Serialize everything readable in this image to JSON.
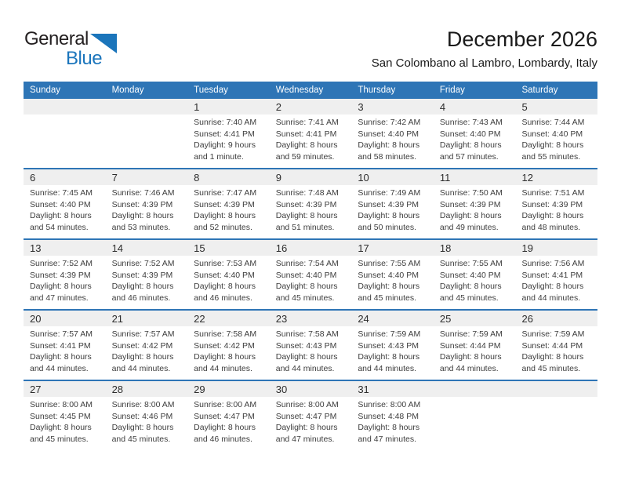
{
  "logo": {
    "text_general": "General",
    "text_blue": "Blue",
    "triangle_color": "#1b75bb"
  },
  "title": "December 2026",
  "subtitle": "San Colombano al Lambro, Lombardy, Italy",
  "weekday_headers": [
    "Sunday",
    "Monday",
    "Tuesday",
    "Wednesday",
    "Thursday",
    "Friday",
    "Saturday"
  ],
  "colors": {
    "header_bg": "#2e75b6",
    "header_text": "#ffffff",
    "week_divider": "#2e75b6",
    "day_strip_bg": "#efefef",
    "body_text": "#3d3d3d",
    "logo_blue": "#1b75bc"
  },
  "weeks": [
    [
      {
        "day": ""
      },
      {
        "day": ""
      },
      {
        "day": "1",
        "sunrise": "Sunrise: 7:40 AM",
        "sunset": "Sunset: 4:41 PM",
        "daylight1": "Daylight: 9 hours",
        "daylight2": "and 1 minute."
      },
      {
        "day": "2",
        "sunrise": "Sunrise: 7:41 AM",
        "sunset": "Sunset: 4:41 PM",
        "daylight1": "Daylight: 8 hours",
        "daylight2": "and 59 minutes."
      },
      {
        "day": "3",
        "sunrise": "Sunrise: 7:42 AM",
        "sunset": "Sunset: 4:40 PM",
        "daylight1": "Daylight: 8 hours",
        "daylight2": "and 58 minutes."
      },
      {
        "day": "4",
        "sunrise": "Sunrise: 7:43 AM",
        "sunset": "Sunset: 4:40 PM",
        "daylight1": "Daylight: 8 hours",
        "daylight2": "and 57 minutes."
      },
      {
        "day": "5",
        "sunrise": "Sunrise: 7:44 AM",
        "sunset": "Sunset: 4:40 PM",
        "daylight1": "Daylight: 8 hours",
        "daylight2": "and 55 minutes."
      }
    ],
    [
      {
        "day": "6",
        "sunrise": "Sunrise: 7:45 AM",
        "sunset": "Sunset: 4:40 PM",
        "daylight1": "Daylight: 8 hours",
        "daylight2": "and 54 minutes."
      },
      {
        "day": "7",
        "sunrise": "Sunrise: 7:46 AM",
        "sunset": "Sunset: 4:39 PM",
        "daylight1": "Daylight: 8 hours",
        "daylight2": "and 53 minutes."
      },
      {
        "day": "8",
        "sunrise": "Sunrise: 7:47 AM",
        "sunset": "Sunset: 4:39 PM",
        "daylight1": "Daylight: 8 hours",
        "daylight2": "and 52 minutes."
      },
      {
        "day": "9",
        "sunrise": "Sunrise: 7:48 AM",
        "sunset": "Sunset: 4:39 PM",
        "daylight1": "Daylight: 8 hours",
        "daylight2": "and 51 minutes."
      },
      {
        "day": "10",
        "sunrise": "Sunrise: 7:49 AM",
        "sunset": "Sunset: 4:39 PM",
        "daylight1": "Daylight: 8 hours",
        "daylight2": "and 50 minutes."
      },
      {
        "day": "11",
        "sunrise": "Sunrise: 7:50 AM",
        "sunset": "Sunset: 4:39 PM",
        "daylight1": "Daylight: 8 hours",
        "daylight2": "and 49 minutes."
      },
      {
        "day": "12",
        "sunrise": "Sunrise: 7:51 AM",
        "sunset": "Sunset: 4:39 PM",
        "daylight1": "Daylight: 8 hours",
        "daylight2": "and 48 minutes."
      }
    ],
    [
      {
        "day": "13",
        "sunrise": "Sunrise: 7:52 AM",
        "sunset": "Sunset: 4:39 PM",
        "daylight1": "Daylight: 8 hours",
        "daylight2": "and 47 minutes."
      },
      {
        "day": "14",
        "sunrise": "Sunrise: 7:52 AM",
        "sunset": "Sunset: 4:39 PM",
        "daylight1": "Daylight: 8 hours",
        "daylight2": "and 46 minutes."
      },
      {
        "day": "15",
        "sunrise": "Sunrise: 7:53 AM",
        "sunset": "Sunset: 4:40 PM",
        "daylight1": "Daylight: 8 hours",
        "daylight2": "and 46 minutes."
      },
      {
        "day": "16",
        "sunrise": "Sunrise: 7:54 AM",
        "sunset": "Sunset: 4:40 PM",
        "daylight1": "Daylight: 8 hours",
        "daylight2": "and 45 minutes."
      },
      {
        "day": "17",
        "sunrise": "Sunrise: 7:55 AM",
        "sunset": "Sunset: 4:40 PM",
        "daylight1": "Daylight: 8 hours",
        "daylight2": "and 45 minutes."
      },
      {
        "day": "18",
        "sunrise": "Sunrise: 7:55 AM",
        "sunset": "Sunset: 4:40 PM",
        "daylight1": "Daylight: 8 hours",
        "daylight2": "and 45 minutes."
      },
      {
        "day": "19",
        "sunrise": "Sunrise: 7:56 AM",
        "sunset": "Sunset: 4:41 PM",
        "daylight1": "Daylight: 8 hours",
        "daylight2": "and 44 minutes."
      }
    ],
    [
      {
        "day": "20",
        "sunrise": "Sunrise: 7:57 AM",
        "sunset": "Sunset: 4:41 PM",
        "daylight1": "Daylight: 8 hours",
        "daylight2": "and 44 minutes."
      },
      {
        "day": "21",
        "sunrise": "Sunrise: 7:57 AM",
        "sunset": "Sunset: 4:42 PM",
        "daylight1": "Daylight: 8 hours",
        "daylight2": "and 44 minutes."
      },
      {
        "day": "22",
        "sunrise": "Sunrise: 7:58 AM",
        "sunset": "Sunset: 4:42 PM",
        "daylight1": "Daylight: 8 hours",
        "daylight2": "and 44 minutes."
      },
      {
        "day": "23",
        "sunrise": "Sunrise: 7:58 AM",
        "sunset": "Sunset: 4:43 PM",
        "daylight1": "Daylight: 8 hours",
        "daylight2": "and 44 minutes."
      },
      {
        "day": "24",
        "sunrise": "Sunrise: 7:59 AM",
        "sunset": "Sunset: 4:43 PM",
        "daylight1": "Daylight: 8 hours",
        "daylight2": "and 44 minutes."
      },
      {
        "day": "25",
        "sunrise": "Sunrise: 7:59 AM",
        "sunset": "Sunset: 4:44 PM",
        "daylight1": "Daylight: 8 hours",
        "daylight2": "and 44 minutes."
      },
      {
        "day": "26",
        "sunrise": "Sunrise: 7:59 AM",
        "sunset": "Sunset: 4:44 PM",
        "daylight1": "Daylight: 8 hours",
        "daylight2": "and 45 minutes."
      }
    ],
    [
      {
        "day": "27",
        "sunrise": "Sunrise: 8:00 AM",
        "sunset": "Sunset: 4:45 PM",
        "daylight1": "Daylight: 8 hours",
        "daylight2": "and 45 minutes."
      },
      {
        "day": "28",
        "sunrise": "Sunrise: 8:00 AM",
        "sunset": "Sunset: 4:46 PM",
        "daylight1": "Daylight: 8 hours",
        "daylight2": "and 45 minutes."
      },
      {
        "day": "29",
        "sunrise": "Sunrise: 8:00 AM",
        "sunset": "Sunset: 4:47 PM",
        "daylight1": "Daylight: 8 hours",
        "daylight2": "and 46 minutes."
      },
      {
        "day": "30",
        "sunrise": "Sunrise: 8:00 AM",
        "sunset": "Sunset: 4:47 PM",
        "daylight1": "Daylight: 8 hours",
        "daylight2": "and 47 minutes."
      },
      {
        "day": "31",
        "sunrise": "Sunrise: 8:00 AM",
        "sunset": "Sunset: 4:48 PM",
        "daylight1": "Daylight: 8 hours",
        "daylight2": "and 47 minutes."
      },
      {
        "day": ""
      },
      {
        "day": ""
      }
    ]
  ]
}
